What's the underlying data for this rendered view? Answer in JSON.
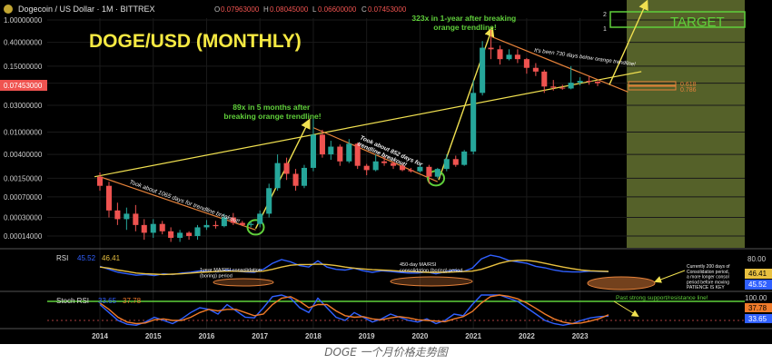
{
  "header": {
    "symbol": "Dogecoin / US Dollar · 1M · BITTREX",
    "ohlc": [
      {
        "label": "O",
        "value": "0.07963000"
      },
      {
        "label": "H",
        "value": "0.08045000"
      },
      {
        "label": "L",
        "value": "0.06600000"
      },
      {
        "label": "C",
        "value": "0.07453000"
      }
    ]
  },
  "title": "DOGE/USD (MONTHLY)",
  "caption": "DOGE 一个月价格走势图",
  "colors": {
    "background": "#000000",
    "up": "#26a69a",
    "down": "#ef5350",
    "title": "#f5e942",
    "orange_line": "#e6823a",
    "yellow_line": "#f0e050",
    "green_annotation": "#5fcf3a",
    "rsi_line": "#3060ff",
    "rsi_ma": "#e8c040",
    "stoch_k": "#3060ff",
    "stoch_d": "#ef7a2a",
    "target_zone": "#9ab04a"
  },
  "chart_data": [
    {
      "type": "candlestick",
      "scale": "log",
      "y_ticks": [
        "1.00000000",
        "0.40000000",
        "0.15000000",
        "0.07453000",
        "0.03000000",
        "0.01000000",
        "0.00400000",
        "0.00150000",
        "0.00070000",
        "0.00030000",
        "0.00014000"
      ],
      "y_tick_values": [
        1.0,
        0.4,
        0.15,
        0.07453,
        0.03,
        0.01,
        0.004,
        0.0015,
        0.0007,
        0.0003,
        0.00014
      ],
      "last_price": "0.07453000",
      "x_ticks": [
        "2014",
        "2015",
        "2016",
        "2017",
        "2018",
        "2019",
        "2020",
        "2021",
        "2022",
        "2023"
      ],
      "x_tick_values": [
        2014,
        2015,
        2016,
        2017,
        2018,
        2019,
        2020,
        2021,
        2022,
        2023
      ],
      "annotations": [
        {
          "text": "89x in 5 months after\nbreaking orange trendline!",
          "color": "green"
        },
        {
          "text": "323x in 1-year after breaking\norange trendline!",
          "color": "green"
        },
        {
          "text": "Took about 1065 days for trendline breakout!",
          "color": "white"
        },
        {
          "text": "Took about 852 days for\ntrendline breakout!",
          "color": "white"
        },
        {
          "text": "It's been 730 days below orange trendline!",
          "color": "white"
        },
        {
          "text": "TARGET",
          "color": "green"
        }
      ],
      "fib_levels": [
        {
          "label": "0.618"
        },
        {
          "label": "0.786"
        }
      ],
      "target_markers": [
        "2",
        "1"
      ],
      "candles": [
        {
          "t": 2014.0,
          "o": 0.0016,
          "h": 0.0019,
          "l": 0.0009,
          "c": 0.0011
        },
        {
          "t": 2014.17,
          "o": 0.0011,
          "h": 0.0013,
          "l": 0.0003,
          "c": 0.0004
        },
        {
          "t": 2014.33,
          "o": 0.0004,
          "h": 0.00055,
          "l": 0.00022,
          "c": 0.00028
        },
        {
          "t": 2014.5,
          "o": 0.00028,
          "h": 0.00045,
          "l": 0.00018,
          "c": 0.00035
        },
        {
          "t": 2014.67,
          "o": 0.00035,
          "h": 0.0005,
          "l": 0.00017,
          "c": 0.00022
        },
        {
          "t": 2014.83,
          "o": 0.00022,
          "h": 0.00028,
          "l": 0.00012,
          "c": 0.00016
        },
        {
          "t": 2015.0,
          "o": 0.00016,
          "h": 0.00028,
          "l": 0.00013,
          "c": 0.00023
        },
        {
          "t": 2015.17,
          "o": 0.00023,
          "h": 0.00026,
          "l": 0.00015,
          "c": 0.00017
        },
        {
          "t": 2015.33,
          "o": 0.00017,
          "h": 0.0002,
          "l": 0.00011,
          "c": 0.00013
        },
        {
          "t": 2015.5,
          "o": 0.00013,
          "h": 0.00018,
          "l": 0.00011,
          "c": 0.00016
        },
        {
          "t": 2015.67,
          "o": 0.00016,
          "h": 0.00017,
          "l": 0.00012,
          "c": 0.00014
        },
        {
          "t": 2015.83,
          "o": 0.00014,
          "h": 0.00022,
          "l": 0.00012,
          "c": 0.0002
        },
        {
          "t": 2016.0,
          "o": 0.0002,
          "h": 0.00027,
          "l": 0.00018,
          "c": 0.00022
        },
        {
          "t": 2016.17,
          "o": 0.00022,
          "h": 0.00026,
          "l": 0.00019,
          "c": 0.00021
        },
        {
          "t": 2016.33,
          "o": 0.00021,
          "h": 0.00035,
          "l": 0.0002,
          "c": 0.0003
        },
        {
          "t": 2016.5,
          "o": 0.0003,
          "h": 0.00036,
          "l": 0.00022,
          "c": 0.00024
        },
        {
          "t": 2016.67,
          "o": 0.00024,
          "h": 0.00026,
          "l": 0.00021,
          "c": 0.00022
        },
        {
          "t": 2016.83,
          "o": 0.00022,
          "h": 0.00025,
          "l": 0.0002,
          "c": 0.00023
        },
        {
          "t": 2017.0,
          "o": 0.00023,
          "h": 0.0004,
          "l": 0.0002,
          "c": 0.00035
        },
        {
          "t": 2017.17,
          "o": 0.00035,
          "h": 0.0012,
          "l": 0.0003,
          "c": 0.001
        },
        {
          "t": 2017.33,
          "o": 0.001,
          "h": 0.004,
          "l": 0.0009,
          "c": 0.0028
        },
        {
          "t": 2017.5,
          "o": 0.0028,
          "h": 0.0035,
          "l": 0.0014,
          "c": 0.0018
        },
        {
          "t": 2017.67,
          "o": 0.0018,
          "h": 0.0022,
          "l": 0.0009,
          "c": 0.0011
        },
        {
          "t": 2017.83,
          "o": 0.0011,
          "h": 0.0026,
          "l": 0.001,
          "c": 0.0023
        },
        {
          "t": 2018.0,
          "o": 0.0023,
          "h": 0.018,
          "l": 0.002,
          "c": 0.009
        },
        {
          "t": 2018.17,
          "o": 0.009,
          "h": 0.011,
          "l": 0.0035,
          "c": 0.004
        },
        {
          "t": 2018.33,
          "o": 0.004,
          "h": 0.007,
          "l": 0.0032,
          "c": 0.0055
        },
        {
          "t": 2018.5,
          "o": 0.0055,
          "h": 0.006,
          "l": 0.0025,
          "c": 0.003
        },
        {
          "t": 2018.67,
          "o": 0.003,
          "h": 0.0075,
          "l": 0.0028,
          "c": 0.0062
        },
        {
          "t": 2018.83,
          "o": 0.0062,
          "h": 0.0065,
          "l": 0.0022,
          "c": 0.0025
        },
        {
          "t": 2019.0,
          "o": 0.0025,
          "h": 0.0027,
          "l": 0.0017,
          "c": 0.0021
        },
        {
          "t": 2019.17,
          "o": 0.0021,
          "h": 0.004,
          "l": 0.002,
          "c": 0.003
        },
        {
          "t": 2019.33,
          "o": 0.003,
          "h": 0.0038,
          "l": 0.0025,
          "c": 0.0028
        },
        {
          "t": 2019.5,
          "o": 0.0028,
          "h": 0.003,
          "l": 0.0022,
          "c": 0.0025
        },
        {
          "t": 2019.67,
          "o": 0.0025,
          "h": 0.0027,
          "l": 0.002,
          "c": 0.0021
        },
        {
          "t": 2019.83,
          "o": 0.0021,
          "h": 0.0023,
          "l": 0.0019,
          "c": 0.002
        },
        {
          "t": 2020.0,
          "o": 0.002,
          "h": 0.0027,
          "l": 0.0019,
          "c": 0.0024
        },
        {
          "t": 2020.17,
          "o": 0.0024,
          "h": 0.0026,
          "l": 0.0012,
          "c": 0.0016
        },
        {
          "t": 2020.33,
          "o": 0.0016,
          "h": 0.0023,
          "l": 0.0015,
          "c": 0.0022
        },
        {
          "t": 2020.5,
          "o": 0.0022,
          "h": 0.004,
          "l": 0.002,
          "c": 0.0033
        },
        {
          "t": 2020.67,
          "o": 0.0033,
          "h": 0.0038,
          "l": 0.0024,
          "c": 0.0026
        },
        {
          "t": 2020.83,
          "o": 0.0026,
          "h": 0.0048,
          "l": 0.0025,
          "c": 0.0045
        },
        {
          "t": 2021.0,
          "o": 0.0045,
          "h": 0.085,
          "l": 0.004,
          "c": 0.05
        },
        {
          "t": 2021.17,
          "o": 0.05,
          "h": 0.42,
          "l": 0.045,
          "c": 0.32
        },
        {
          "t": 2021.33,
          "o": 0.32,
          "h": 0.74,
          "l": 0.2,
          "c": 0.3
        },
        {
          "t": 2021.5,
          "o": 0.3,
          "h": 0.35,
          "l": 0.16,
          "c": 0.2
        },
        {
          "t": 2021.67,
          "o": 0.2,
          "h": 0.3,
          "l": 0.19,
          "c": 0.24
        },
        {
          "t": 2021.83,
          "o": 0.24,
          "h": 0.3,
          "l": 0.17,
          "c": 0.2
        },
        {
          "t": 2022.0,
          "o": 0.2,
          "h": 0.21,
          "l": 0.11,
          "c": 0.14
        },
        {
          "t": 2022.17,
          "o": 0.14,
          "h": 0.17,
          "l": 0.1,
          "c": 0.12
        },
        {
          "t": 2022.33,
          "o": 0.12,
          "h": 0.13,
          "l": 0.05,
          "c": 0.065
        },
        {
          "t": 2022.5,
          "o": 0.065,
          "h": 0.085,
          "l": 0.055,
          "c": 0.062
        },
        {
          "t": 2022.67,
          "o": 0.062,
          "h": 0.07,
          "l": 0.057,
          "c": 0.06
        },
        {
          "t": 2022.83,
          "o": 0.06,
          "h": 0.15,
          "l": 0.058,
          "c": 0.076
        },
        {
          "t": 2023.0,
          "o": 0.076,
          "h": 0.095,
          "l": 0.068,
          "c": 0.082
        },
        {
          "t": 2023.17,
          "o": 0.082,
          "h": 0.1,
          "l": 0.07,
          "c": 0.08
        },
        {
          "t": 2023.33,
          "o": 0.07963,
          "h": 0.08045,
          "l": 0.066,
          "c": 0.07453
        }
      ],
      "orange_trendlines": [
        [
          [
            2014.0,
            0.0016
          ],
          [
            2016.92,
            0.00018
          ]
        ],
        [
          [
            2018.0,
            0.012
          ],
          [
            2020.33,
            0.0013
          ]
        ],
        [
          [
            2021.35,
            0.5
          ],
          [
            2023.9,
            0.052
          ]
        ]
      ],
      "yellow_support_line": [
        [
          2013.9,
          0.0016
        ],
        [
          2024.15,
          0.12
        ]
      ],
      "yellow_arrows": [
        [
          [
            2016.92,
            0.00019
          ],
          [
            2017.92,
            0.016
          ]
        ],
        [
          [
            2020.35,
            0.0014
          ],
          [
            2021.35,
            0.7
          ]
        ],
        [
          [
            2023.55,
            0.07
          ],
          [
            2024.25,
            2.1
          ]
        ]
      ],
      "circles": [
        {
          "t": 2016.92,
          "v": 0.0002
        },
        {
          "t": 2020.3,
          "v": 0.0015
        }
      ]
    },
    {
      "type": "line",
      "title": "RSI",
      "latest": [
        "45.52",
        "46.41"
      ],
      "y_ticks": [
        "80.00"
      ],
      "last_labels": [
        "46.41",
        "45.52"
      ],
      "series": [
        {
          "values": [
            60,
            52,
            44,
            40,
            36,
            38,
            35,
            40,
            38,
            42,
            44,
            48,
            46,
            45,
            50,
            47,
            45,
            44,
            52,
            68,
            78,
            72,
            62,
            58,
            75,
            58,
            52,
            50,
            55,
            48,
            44,
            48,
            46,
            44,
            42,
            42,
            45,
            40,
            45,
            50,
            46,
            55,
            80,
            90,
            85,
            76,
            72,
            68,
            60,
            56,
            50,
            46,
            45,
            45,
            47,
            46,
            45.52
          ]
        },
        {
          "values": [
            58,
            55,
            50,
            46,
            42,
            40,
            39,
            38,
            39,
            40,
            42,
            44,
            45,
            46,
            47,
            47,
            46,
            46,
            47,
            52,
            58,
            63,
            65,
            65,
            66,
            65,
            62,
            58,
            55,
            53,
            51,
            50,
            49,
            47,
            46,
            45,
            44,
            44,
            44,
            45,
            46,
            47,
            52,
            60,
            68,
            74,
            76,
            76,
            73,
            68,
            63,
            58,
            54,
            50,
            48,
            47,
            46.41
          ]
        }
      ],
      "annotations": [
        "1year MA/RSI consolidation\n(boring) period",
        "450-day MA/RSI\nconsolidation (boring) period",
        "Currently 200 days of\nConsolidation period,\na more longer consol\nperiod before moving\nPATIENCE IS KEY"
      ]
    },
    {
      "type": "line",
      "title": "Stoch RSI",
      "latest": [
        "33.65",
        "37.78"
      ],
      "y_ticks": [
        "100.00"
      ],
      "last_labels": [
        "37.78",
        "33.65"
      ],
      "series": [
        {
          "values": [
            70,
            45,
            20,
            8,
            5,
            15,
            30,
            20,
            10,
            25,
            45,
            60,
            55,
            40,
            70,
            50,
            30,
            28,
            60,
            95,
            100,
            90,
            60,
            45,
            90,
            60,
            30,
            20,
            45,
            30,
            15,
            25,
            40,
            30,
            20,
            15,
            25,
            10,
            20,
            40,
            35,
            70,
            100,
            100,
            100,
            90,
            80,
            60,
            40,
            20,
            10,
            5,
            10,
            20,
            28,
            32,
            33.65
          ]
        },
        {
          "values": [
            75,
            55,
            30,
            15,
            10,
            12,
            22,
            25,
            20,
            20,
            30,
            45,
            55,
            50,
            55,
            55,
            45,
            35,
            40,
            70,
            90,
            95,
            80,
            60,
            70,
            70,
            50,
            35,
            30,
            32,
            25,
            22,
            28,
            32,
            28,
            22,
            20,
            18,
            16,
            25,
            32,
            48,
            75,
            95,
            100,
            96,
            88,
            75,
            58,
            40,
            25,
            15,
            10,
            12,
            18,
            26,
            37.78
          ]
        }
      ],
      "annotations": [
        "Past strong support/resistance line!"
      ]
    }
  ]
}
